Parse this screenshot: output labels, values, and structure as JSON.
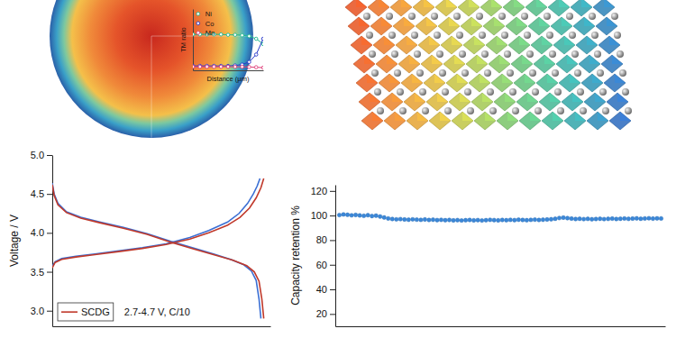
{
  "chart_data": [
    {
      "type": "line",
      "y_label": "TM ratio",
      "x_label": "Distance (μm)",
      "x": [
        0,
        1,
        2,
        3,
        4,
        5,
        6,
        7,
        8,
        9,
        10
      ],
      "xlim": [
        0,
        10
      ],
      "ylim": [
        0,
        1.4
      ],
      "tick_labels": false,
      "marker": "circle",
      "legend": "upper left",
      "series": [
        {
          "name": "Ni",
          "color": "#1fb88f",
          "values": [
            0.82,
            0.82,
            0.82,
            0.82,
            0.82,
            0.81,
            0.81,
            0.8,
            0.78,
            0.72,
            0.6
          ]
        },
        {
          "name": "Co",
          "color": "#2638c9",
          "values": [
            0.1,
            0.1,
            0.1,
            0.1,
            0.1,
            0.1,
            0.11,
            0.13,
            0.19,
            0.36,
            0.72
          ]
        },
        {
          "name": "Mn",
          "color": "#e0407a",
          "values": [
            0.08,
            0.08,
            0.08,
            0.08,
            0.08,
            0.08,
            0.08,
            0.08,
            0.075,
            0.07,
            0.06
          ]
        }
      ]
    },
    {
      "type": "line",
      "y_label": "Voltage / V",
      "annotation": "2.7-4.7 V, C/10",
      "xlim": [
        0,
        230
      ],
      "ylim": [
        2.8,
        5.0
      ],
      "yticks": [
        {
          "value": 3.0,
          "label": "3.0"
        },
        3.5,
        {
          "value": 4.0,
          "label": "4.0"
        },
        4.5,
        {
          "value": 5.0,
          "label": "5.0"
        }
      ],
      "tick_labels": "y",
      "legend": "lower left",
      "series": [
        {
          "color": "#3b6fd4",
          "x": [
            0,
            3,
            10,
            25,
            45,
            70,
            95,
            120,
            145,
            165,
            185,
            197,
            206,
            212,
            216,
            219
          ],
          "values": [
            3.57,
            3.63,
            3.67,
            3.7,
            3.73,
            3.77,
            3.81,
            3.86,
            3.94,
            4.03,
            4.14,
            4.25,
            4.38,
            4.5,
            4.6,
            4.7
          ]
        },
        {
          "color": "#3b6fd4",
          "x": [
            0,
            2,
            6,
            15,
            30,
            50,
            75,
            100,
            125,
            150,
            170,
            188,
            202,
            210,
            215,
            218,
            220
          ],
          "values": [
            4.64,
            4.5,
            4.38,
            4.27,
            4.2,
            4.14,
            4.07,
            3.99,
            3.89,
            3.8,
            3.73,
            3.66,
            3.59,
            3.51,
            3.39,
            3.15,
            2.9
          ]
        },
        {
          "name": "SCDG",
          "color": "#c0392b",
          "x": [
            0,
            3,
            10,
            25,
            45,
            70,
            95,
            120,
            145,
            165,
            185,
            198,
            208,
            215,
            220,
            223
          ],
          "values": [
            3.55,
            3.62,
            3.66,
            3.69,
            3.72,
            3.76,
            3.8,
            3.85,
            3.92,
            4.0,
            4.1,
            4.2,
            4.32,
            4.45,
            4.58,
            4.7
          ]
        },
        {
          "color": "#c0392b",
          "x": [
            0,
            2,
            6,
            15,
            30,
            50,
            75,
            100,
            125,
            150,
            170,
            190,
            205,
            213,
            218,
            221,
            223
          ],
          "values": [
            4.62,
            4.48,
            4.36,
            4.26,
            4.19,
            4.13,
            4.06,
            3.98,
            3.88,
            3.79,
            3.72,
            3.65,
            3.58,
            3.5,
            3.38,
            3.15,
            2.9
          ]
        }
      ]
    },
    {
      "type": "scatter",
      "y_label": "Capacity retention %",
      "color": "#3b87d8",
      "marker": "circle",
      "xlim": [
        0,
        81
      ],
      "ylim": [
        10,
        125
      ],
      "yticks": [
        20,
        40,
        60,
        80,
        100,
        120
      ],
      "tick_labels": "y",
      "x": [
        1,
        2,
        3,
        4,
        5,
        6,
        7,
        8,
        9,
        10,
        11,
        12,
        13,
        14,
        15,
        16,
        17,
        18,
        19,
        20,
        21,
        22,
        23,
        24,
        25,
        26,
        27,
        28,
        29,
        30,
        31,
        32,
        33,
        34,
        35,
        36,
        37,
        38,
        39,
        40,
        41,
        42,
        43,
        44,
        45,
        46,
        47,
        48,
        49,
        50,
        51,
        52,
        53,
        54,
        55,
        56,
        57,
        58,
        59,
        60,
        61,
        62,
        63,
        64,
        65,
        66,
        67,
        68,
        69,
        70,
        71,
        72,
        73,
        74,
        75,
        76,
        77,
        78,
        79,
        80
      ],
      "values": [
        100.4,
        100.9,
        100.6,
        100.2,
        100.5,
        100.1,
        99.8,
        100.3,
        99.6,
        99.9,
        99.2,
        98.4,
        97.6,
        97.2,
        96.9,
        97.1,
        96.8,
        96.6,
        96.9,
        96.7,
        96.5,
        96.8,
        96.4,
        96.6,
        96.3,
        96.5,
        96.2,
        96.4,
        96.1,
        96.3,
        96.0,
        96.2,
        96.4,
        96.1,
        96.3,
        96.0,
        96.2,
        96.5,
        96.3,
        96.1,
        96.4,
        96.2,
        96.5,
        96.3,
        96.6,
        96.4,
        96.2,
        96.5,
        96.7,
        96.4,
        96.6,
        96.8,
        97.0,
        97.4,
        98.0,
        98.3,
        97.9,
        97.5,
        97.2,
        97.4,
        97.1,
        97.3,
        97.0,
        97.2,
        97.4,
        97.1,
        97.3,
        97.5,
        97.2,
        97.4,
        97.6,
        97.3,
        97.5,
        97.7,
        97.4,
        97.6,
        97.8,
        97.5,
        97.7,
        97.6
      ]
    }
  ]
}
